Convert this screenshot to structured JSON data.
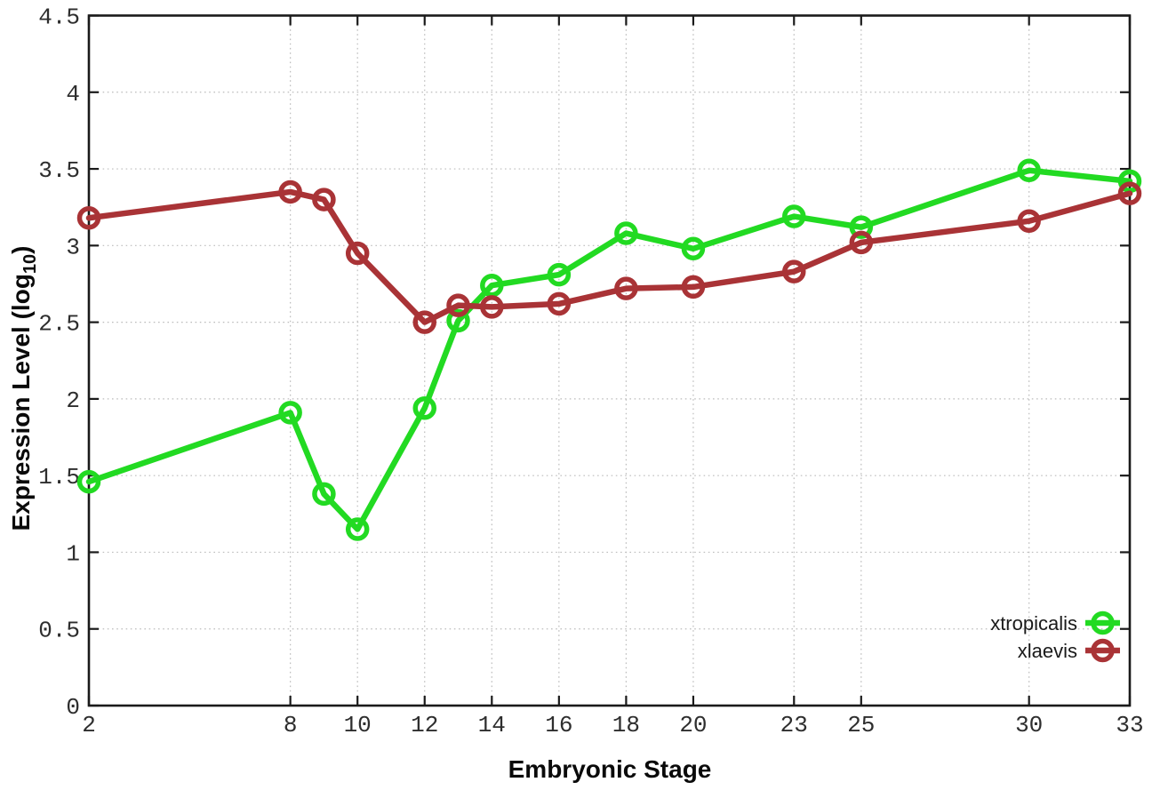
{
  "chart_data": {
    "type": "line",
    "title": "",
    "xlabel": "Embryonic Stage",
    "ylabel": "Expression Level (log10)",
    "ylabel_parts": {
      "prefix": "Expression Level (log",
      "sub": "10",
      "suffix": ")"
    },
    "xlim": [
      2,
      33
    ],
    "ylim": [
      0,
      4.5
    ],
    "xticks": [
      2,
      8,
      10,
      12,
      14,
      16,
      18,
      20,
      23,
      25,
      30,
      33
    ],
    "xtick_labels": [
      "2",
      "8",
      "10",
      "12",
      "14",
      "16",
      "18",
      "20",
      "23",
      "25",
      "30",
      "33"
    ],
    "yticks": [
      0,
      0.5,
      1,
      1.5,
      2,
      2.5,
      3,
      3.5,
      4,
      4.5
    ],
    "ytick_labels": [
      "0",
      "0.5",
      "1",
      "1.5",
      "2",
      "2.5",
      "3",
      "3.5",
      "4",
      "4.5"
    ],
    "grid": true,
    "legend_position": "bottom-right",
    "x": [
      2,
      8,
      9,
      10,
      12,
      13,
      14,
      16,
      18,
      20,
      23,
      25,
      30,
      33
    ],
    "series": [
      {
        "name": "xtropicalis",
        "color": "#22da22",
        "marker": "open-circle",
        "values": [
          1.46,
          1.91,
          1.38,
          1.15,
          1.94,
          2.51,
          2.74,
          2.81,
          3.08,
          2.98,
          3.19,
          3.12,
          3.49,
          3.42
        ]
      },
      {
        "name": "xlaevis",
        "color": "#a93336",
        "marker": "open-circle",
        "values": [
          3.18,
          3.35,
          3.3,
          2.95,
          2.5,
          2.61,
          2.6,
          2.62,
          2.72,
          2.73,
          2.83,
          3.02,
          3.16,
          3.34
        ]
      }
    ],
    "colors": {
      "axis": "#1a1a1a",
      "grid": "#bcbcbc",
      "tick_label": "#2e2e2e",
      "legend_text": "#1a1a1a",
      "background": "#ffffff"
    }
  }
}
